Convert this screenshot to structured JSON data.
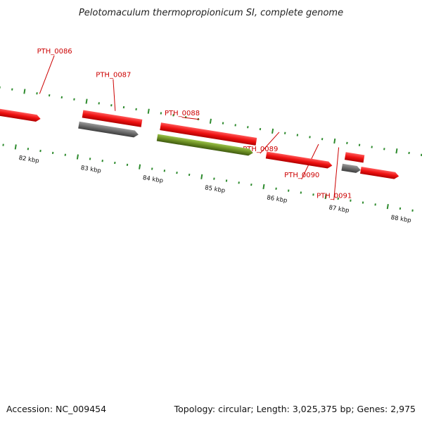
{
  "title": "Pelotomaculum thermopropionicum SI, complete genome",
  "footer": {
    "accession": "Accession: NC_009454",
    "summary": "Topology: circular; Length: 3,025,375 bp; Genes: 2,975"
  },
  "colors": {
    "backbone": "#8a8a8a",
    "forward_gene": "#ee1111",
    "grey_feature": "#666666",
    "green_feature": "#6b8e23",
    "tick": "#2e8b2e",
    "label": "#cc0000"
  },
  "chart_data": {
    "type": "genome-map",
    "sequence": "Pelotomaculum thermopropionicum SI, complete genome",
    "kbp_ticks": [
      {
        "kbp": 82,
        "label": "82 kbp"
      },
      {
        "kbp": 83,
        "label": "83 kbp"
      },
      {
        "kbp": 84,
        "label": "84 kbp"
      },
      {
        "kbp": 85,
        "label": "85 kbp"
      },
      {
        "kbp": 86,
        "label": "86 kbp"
      },
      {
        "kbp": 87,
        "label": "87 kbp"
      },
      {
        "kbp": 88,
        "label": "88 kbp"
      }
    ],
    "gene_labels": [
      "PTH_0086",
      "PTH_0087",
      "PTH_0088",
      "PTH_0089",
      "PTH_0090",
      "PTH_0091"
    ],
    "features": [
      {
        "name": "PTH_0086",
        "type": "gene",
        "strand": "+"
      },
      {
        "name": "PTH_0087",
        "type": "gene",
        "strand": "+"
      },
      {
        "name": "PTH_0087",
        "type": "grey",
        "strand": "+"
      },
      {
        "name": "PTH_0088",
        "type": "gene",
        "strand": "+"
      },
      {
        "name": "PTH_0088",
        "type": "green",
        "strand": "+"
      },
      {
        "name": "PTH_0089",
        "type": "gene",
        "strand": "+"
      },
      {
        "name": "PTH_0090",
        "type": "gene",
        "strand": "+"
      },
      {
        "name": "PTH_0090",
        "type": "grey",
        "strand": "+"
      },
      {
        "name": "PTH_0091",
        "type": "gene",
        "strand": "+"
      },
      {
        "name": "",
        "type": "gene",
        "strand": "+"
      }
    ]
  }
}
